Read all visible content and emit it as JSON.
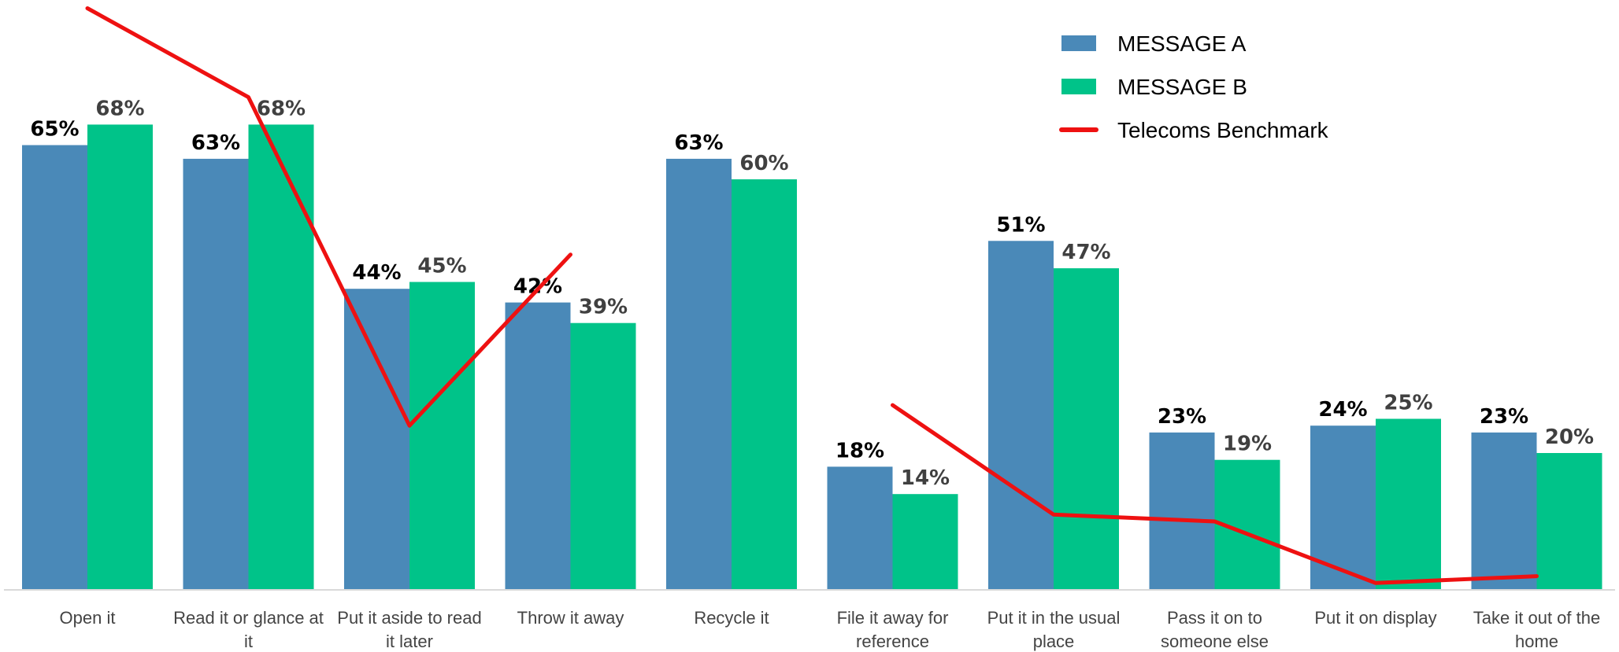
{
  "chart_data": {
    "type": "bar",
    "categories": [
      [
        "Open it"
      ],
      [
        "Read it or glance at",
        "it"
      ],
      [
        "Put it aside to read",
        "it later"
      ],
      [
        "Throw it away"
      ],
      [
        "Recycle it"
      ],
      [
        "File it away for",
        "reference"
      ],
      [
        "Put it in the usual",
        "place"
      ],
      [
        "Pass it on to",
        "someone else"
      ],
      [
        "Put it on display"
      ],
      [
        "Take it out of the",
        "home"
      ]
    ],
    "series": [
      {
        "name": "MESSAGE A",
        "color": "#4a89b8",
        "label_color": "#000000",
        "values": [
          65,
          63,
          44,
          42,
          63,
          18,
          51,
          23,
          24,
          23
        ],
        "labels": [
          "65%",
          "63%",
          "44%",
          "42%",
          "63%",
          "18%",
          "51%",
          "23%",
          "24%",
          "23%"
        ]
      },
      {
        "name": "MESSAGE B",
        "color": "#00c389",
        "label_color": "#404040",
        "values": [
          68,
          68,
          45,
          39,
          60,
          14,
          47,
          19,
          25,
          20
        ],
        "labels": [
          "68%",
          "68%",
          "45%",
          "39%",
          "60%",
          "14%",
          "47%",
          "19%",
          "25%",
          "20%"
        ]
      }
    ],
    "benchmark": {
      "name": "Telecoms Benchmark",
      "color": "#ee1111",
      "segments": [
        {
          "x": [
            0,
            1,
            2,
            3
          ],
          "values": [
            85,
            72,
            24,
            49
          ]
        },
        {
          "x": [
            5,
            6,
            7,
            8,
            9
          ],
          "values": [
            27,
            11,
            10,
            1,
            2
          ]
        }
      ]
    },
    "ylim": [
      0,
      86
    ],
    "legend_position": "top-right",
    "grid": false
  }
}
